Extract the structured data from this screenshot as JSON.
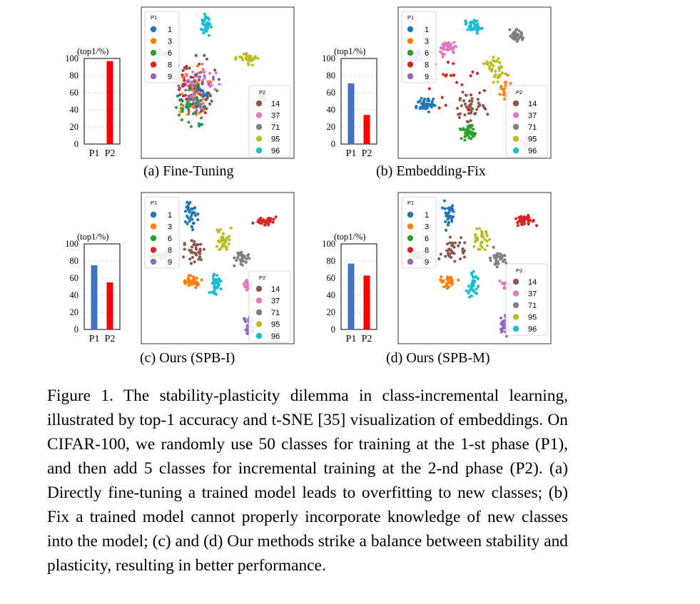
{
  "figure": {
    "caption_label": "Figure 1.",
    "caption_text": "The stability-plasticity dilemma in class-incremental learning, illustrated by top-1 accuracy and t-SNE [35] visualization of embeddings. On CIFAR-100, we randomly use 50 classes for training at the 1-st phase (P1), and then add 5 classes for incremental training at the 2-nd phase (P2). (a) Directly fine-tuning a trained model leads to overfitting to new classes; (b) Fix a trained model cannot properly incorporate knowledge of new classes into the model; (c) and (d) Our methods strike a balance between stability and plasticity, resulting in better performance."
  },
  "legend": {
    "p1_title": "P1",
    "p2_title": "P2",
    "p1_classes": [
      {
        "label": "1",
        "color": "#1f77b4"
      },
      {
        "label": "3",
        "color": "#ff7f0e"
      },
      {
        "label": "6",
        "color": "#2ca02c"
      },
      {
        "label": "8",
        "color": "#d62728"
      },
      {
        "label": "9",
        "color": "#9467bd"
      }
    ],
    "p2_classes": [
      {
        "label": "14",
        "color": "#8c564b"
      },
      {
        "label": "37",
        "color": "#e377c2"
      },
      {
        "label": "71",
        "color": "#7f7f7f"
      },
      {
        "label": "95",
        "color": "#bcbd22"
      },
      {
        "label": "96",
        "color": "#17becf"
      }
    ]
  },
  "chart_data": [
    {
      "type": "bar",
      "subcaption": "(a) Fine-Tuning",
      "ylabel": "(top1/%)",
      "categories": [
        "P1",
        "P2"
      ],
      "values": [
        0,
        97
      ],
      "colors": [
        "#4472c4",
        "#ff0000"
      ],
      "ylim": [
        0,
        100
      ],
      "yticks": [
        0,
        20,
        40,
        60,
        80,
        100
      ],
      "grid": true,
      "tsne": "mixed"
    },
    {
      "type": "bar",
      "subcaption": "(b) Embedding-Fix",
      "ylabel": "(top1/%)",
      "categories": [
        "P1",
        "P2"
      ],
      "values": [
        71,
        34
      ],
      "colors": [
        "#4472c4",
        "#ff0000"
      ],
      "ylim": [
        0,
        100
      ],
      "yticks": [
        0,
        20,
        40,
        60,
        80,
        100
      ],
      "grid": true,
      "tsne": "p1_separated"
    },
    {
      "type": "bar",
      "subcaption": "(c) Ours (SPB-I)",
      "ylabel": "(top1/%)",
      "categories": [
        "P1",
        "P2"
      ],
      "values": [
        75,
        55
      ],
      "colors": [
        "#4472c4",
        "#ff0000"
      ],
      "ylim": [
        0,
        100
      ],
      "yticks": [
        0,
        20,
        40,
        60,
        80,
        100
      ],
      "grid": true,
      "tsne": "balanced"
    },
    {
      "type": "bar",
      "subcaption": "(d) Ours (SPB-M)",
      "ylabel": "(top1/%)",
      "categories": [
        "P1",
        "P2"
      ],
      "values": [
        77,
        63
      ],
      "colors": [
        "#4472c4",
        "#ff0000"
      ],
      "ylim": [
        0,
        100
      ],
      "yticks": [
        0,
        20,
        40,
        60,
        80,
        100
      ],
      "grid": true,
      "tsne": "balanced"
    }
  ]
}
